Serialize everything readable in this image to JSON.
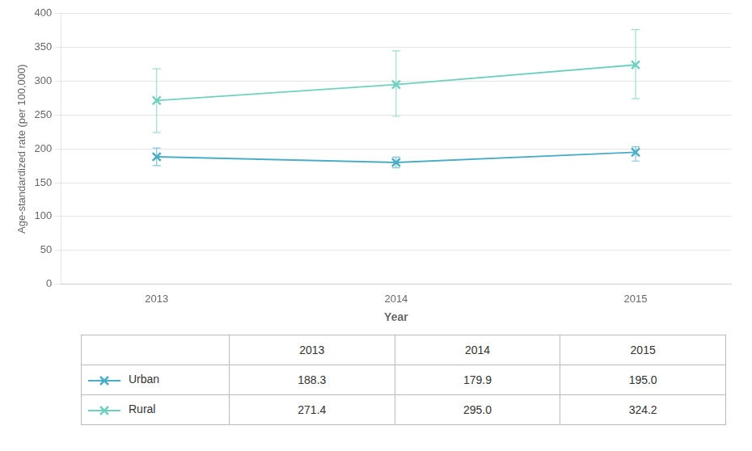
{
  "chart_data": {
    "type": "line",
    "x": [
      2013,
      2014,
      2015
    ],
    "xlabel": "Year",
    "ylabel": "Age-standardized rate (per 100,000)",
    "xlim": [
      2012.6,
      2015.4
    ],
    "xticks": [
      2013,
      2014,
      2015
    ],
    "ylim": [
      0,
      400
    ],
    "yticks": [
      0,
      50,
      100,
      150,
      200,
      250,
      300,
      350,
      400
    ],
    "grid": "y",
    "series": [
      {
        "name": "Urban",
        "color": "#4bacc6",
        "marker": "x",
        "values": [
          188.3,
          179.9,
          195.0
        ],
        "value_labels": [
          "188.3",
          "179.9",
          "195.0"
        ],
        "yerr_low": [
          13.0,
          8.0,
          13.0
        ],
        "yerr_high": [
          13.0,
          8.0,
          8.0
        ]
      },
      {
        "name": "Rural",
        "color": "#70d0c0",
        "marker": "x",
        "values": [
          271.4,
          295.0,
          324.2
        ],
        "value_labels": [
          "271.4",
          "295.0",
          "324.2"
        ],
        "yerr_low": [
          47.0,
          47.0,
          50.0
        ],
        "yerr_high": [
          47.0,
          50.0,
          52.0
        ]
      }
    ]
  }
}
